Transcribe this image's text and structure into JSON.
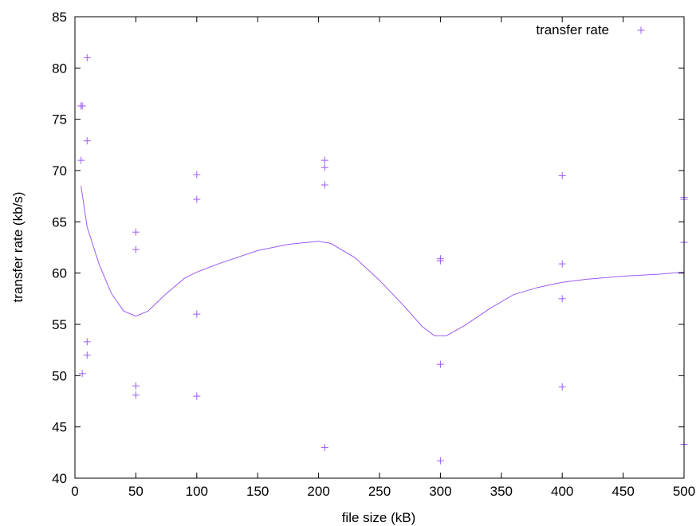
{
  "chart_data": {
    "type": "scatter",
    "title": "",
    "xlabel": "file size (kB)",
    "ylabel": "transfer rate (kb/s)",
    "xlim": [
      0,
      500
    ],
    "ylim": [
      40,
      85
    ],
    "x_ticks": [
      0,
      50,
      100,
      150,
      200,
      250,
      300,
      350,
      400,
      450,
      500
    ],
    "y_ticks": [
      40,
      45,
      50,
      55,
      60,
      65,
      70,
      75,
      80,
      85
    ],
    "grid": false,
    "legend_position": "top-right",
    "colors": {
      "series": "#9b5cf5",
      "axis": "#000000"
    },
    "series": [
      {
        "name": "transfer rate",
        "style": "points",
        "marker": "+",
        "points": [
          [
            5,
            76.3
          ],
          [
            6,
            76.3
          ],
          [
            5,
            71.0
          ],
          [
            10,
            81.0
          ],
          [
            10,
            72.9
          ],
          [
            10,
            53.3
          ],
          [
            10,
            52.0
          ],
          [
            6,
            50.2
          ],
          [
            50,
            64.0
          ],
          [
            50,
            62.3
          ],
          [
            50,
            49.0
          ],
          [
            50,
            48.1
          ],
          [
            100,
            69.6
          ],
          [
            100,
            67.2
          ],
          [
            100,
            56.0
          ],
          [
            100,
            48.0
          ],
          [
            205,
            71.0
          ],
          [
            205,
            70.3
          ],
          [
            205,
            68.6
          ],
          [
            205,
            43.0
          ],
          [
            300,
            61.4
          ],
          [
            300,
            61.2
          ],
          [
            300,
            51.1
          ],
          [
            300,
            41.7
          ],
          [
            400,
            69.5
          ],
          [
            400,
            60.9
          ],
          [
            400,
            57.5
          ],
          [
            400,
            48.9
          ],
          [
            500,
            67.4
          ],
          [
            500,
            67.2
          ],
          [
            500,
            63.0
          ],
          [
            500,
            43.3
          ]
        ]
      },
      {
        "style": "line",
        "smooth": true,
        "points": [
          [
            5,
            68.5
          ],
          [
            10,
            64.5
          ],
          [
            20,
            60.8
          ],
          [
            30,
            58.0
          ],
          [
            40,
            56.3
          ],
          [
            50,
            55.8
          ],
          [
            60,
            56.3
          ],
          [
            75,
            58.0
          ],
          [
            90,
            59.5
          ],
          [
            100,
            60.1
          ],
          [
            120,
            61.0
          ],
          [
            150,
            62.2
          ],
          [
            175,
            62.8
          ],
          [
            200,
            63.1
          ],
          [
            210,
            62.9
          ],
          [
            230,
            61.5
          ],
          [
            250,
            59.3
          ],
          [
            270,
            56.8
          ],
          [
            285,
            54.8
          ],
          [
            295,
            53.9
          ],
          [
            305,
            53.9
          ],
          [
            320,
            54.9
          ],
          [
            340,
            56.5
          ],
          [
            360,
            57.9
          ],
          [
            380,
            58.6
          ],
          [
            400,
            59.1
          ],
          [
            420,
            59.4
          ],
          [
            450,
            59.7
          ],
          [
            480,
            59.9
          ],
          [
            500,
            60.1
          ]
        ]
      }
    ]
  }
}
